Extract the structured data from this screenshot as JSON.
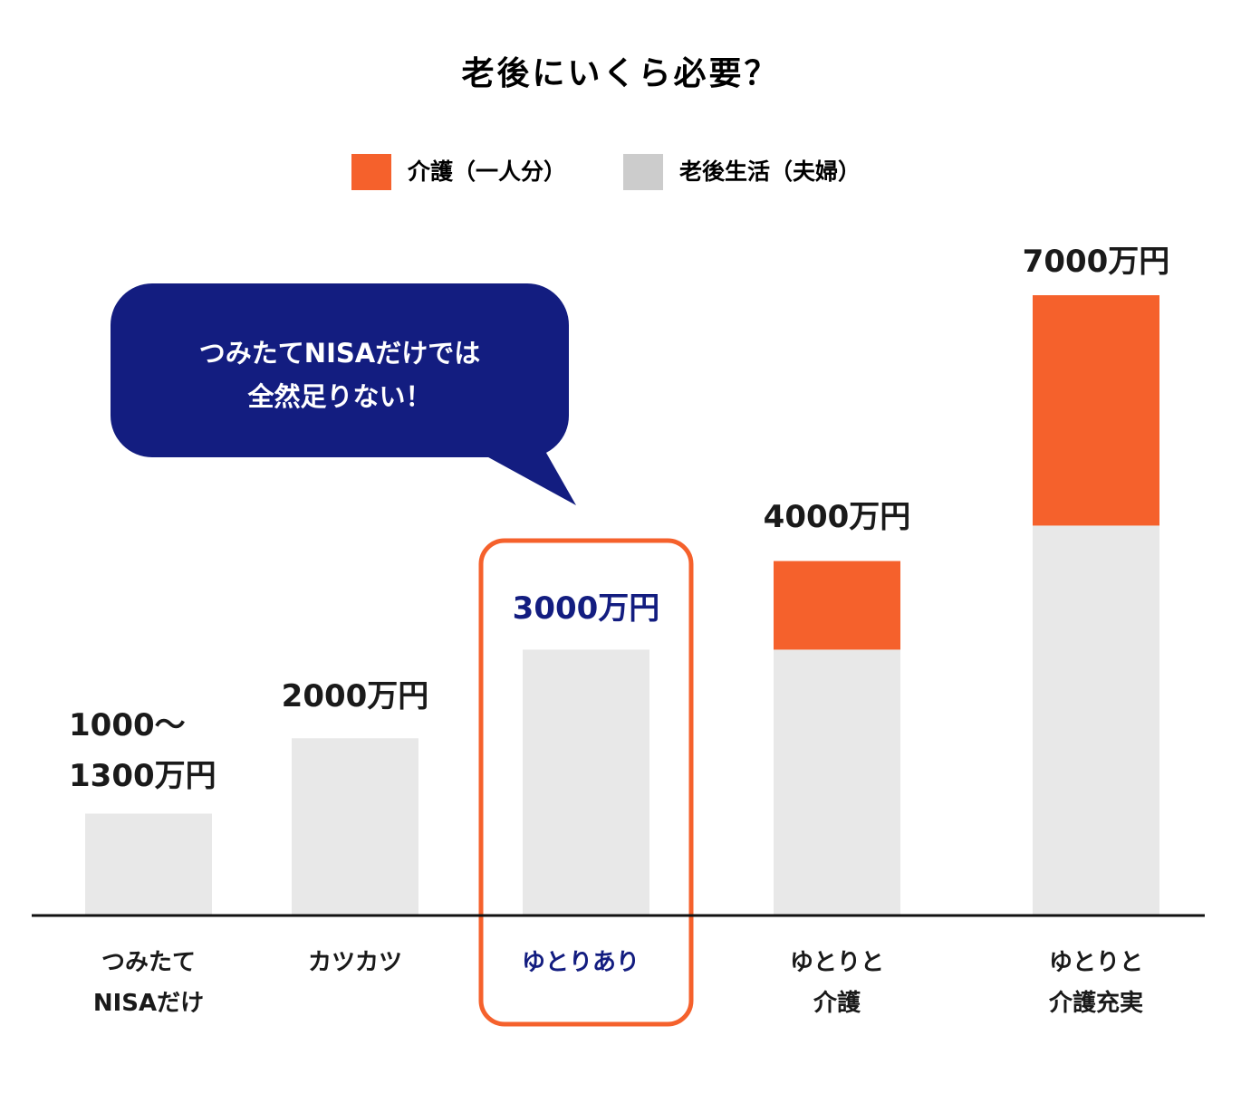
{
  "chart_data": {
    "type": "bar",
    "stacked": true,
    "title": "老後にいくら必要？",
    "categories": [
      [
        "つみたて",
        "NISAだけ"
      ],
      [
        "カツカツ"
      ],
      [
        "ゆとりあり"
      ],
      [
        "ゆとりと",
        "介護"
      ],
      [
        "ゆとりと",
        "介護充実"
      ]
    ],
    "series": [
      {
        "name": "老後生活（夫婦）",
        "color": "#e8e8e8",
        "values": [
          1150,
          2000,
          3000,
          3000,
          4400
        ]
      },
      {
        "name": "介護（一人分）",
        "color": "#f5612c",
        "values": [
          0,
          0,
          0,
          1000,
          2600
        ]
      }
    ],
    "data_labels": [
      [
        "1000～",
        "1300万円"
      ],
      [
        "2000万円"
      ],
      [
        "3000万円"
      ],
      [
        "4000万円"
      ],
      [
        "7000万円"
      ]
    ],
    "legend_order": [
      "介護（一人分）",
      "老後生活（夫婦）"
    ],
    "legend_swatch_colors": [
      "#f5612c",
      "#cccccc"
    ],
    "legend_position": "top",
    "highlight_index": 2,
    "highlight_color": "#f5612c",
    "highlight_text_color": "#131d80",
    "annotation": {
      "lines": [
        "つみたてNISAだけでは",
        "全然足りない！"
      ],
      "color": "#131d80"
    },
    "ylim": [
      0,
      7000
    ],
    "grid": false
  }
}
